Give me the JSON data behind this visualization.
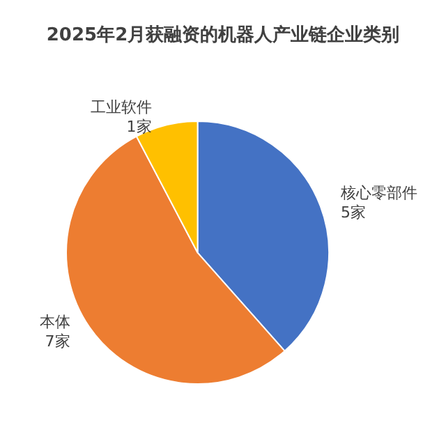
{
  "chart_data": {
    "type": "pie",
    "title": "2025年2月获融资的机器人产业链企业类别",
    "categories": [
      "核心零部件",
      "本体",
      "工业软件"
    ],
    "values": [
      5,
      7,
      1
    ],
    "colors": [
      "#4472c4",
      "#ed7d31",
      "#ffc000"
    ],
    "value_labels": [
      "5家",
      "7家",
      "1家"
    ],
    "legend": false
  }
}
